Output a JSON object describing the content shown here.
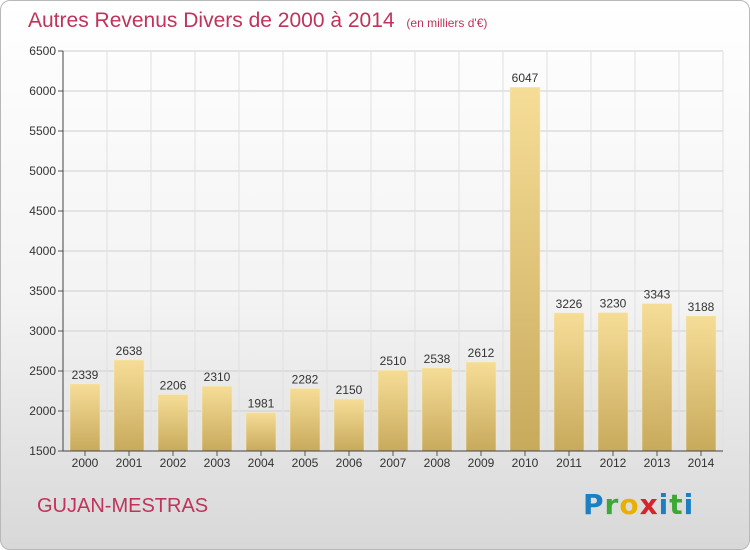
{
  "chart_data": {
    "type": "bar",
    "title": "Autres Revenus Divers de 2000 à 2014",
    "subtitle": "(en milliers d'€)",
    "categories": [
      "2000",
      "2001",
      "2002",
      "2003",
      "2004",
      "2005",
      "2006",
      "2007",
      "2008",
      "2009",
      "2010",
      "2011",
      "2012",
      "2013",
      "2014"
    ],
    "values": [
      2339,
      2638,
      2206,
      2310,
      1981,
      2282,
      2150,
      2510,
      2538,
      2612,
      6047,
      3226,
      3230,
      3343,
      3188
    ],
    "ylim": [
      1500,
      6500
    ],
    "yticks": [
      1500,
      2000,
      2500,
      3000,
      3500,
      4000,
      4500,
      5000,
      5500,
      6000,
      6500
    ],
    "grid": true,
    "bar_color": "#e8cf84"
  },
  "footer": {
    "commune": "GUJAN-MESTRAS",
    "logo": "Proxiti"
  }
}
